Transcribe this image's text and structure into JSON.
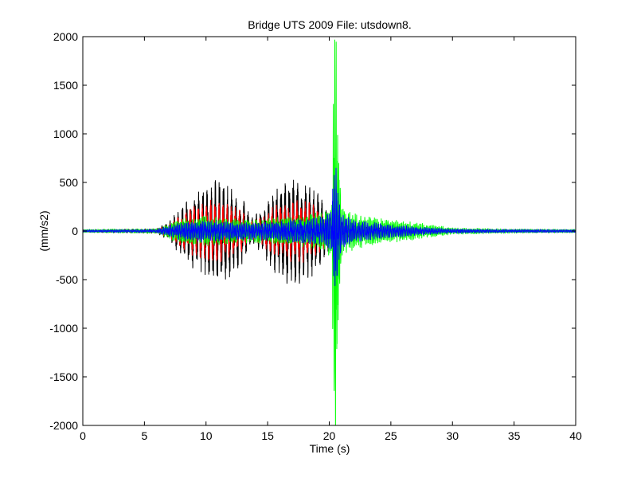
{
  "chart_data": {
    "type": "line",
    "title": "Bridge UTS 2009 File: utsdown8.",
    "xlabel": "Time (s)",
    "ylabel": "(mm/s2)",
    "xlim": [
      0,
      40
    ],
    "ylim": [
      -2000,
      2000
    ],
    "xticks": [
      0,
      5,
      10,
      15,
      20,
      25,
      30,
      35,
      40
    ],
    "yticks": [
      -2000,
      -1500,
      -1000,
      -500,
      0,
      500,
      1000,
      1500,
      2000
    ],
    "grid": false,
    "legend": "none",
    "series": [
      {
        "color": "#000000",
        "envelope_t": [
          0,
          6.0,
          7.0,
          8.0,
          9.0,
          10.0,
          11.0,
          12.0,
          13.0,
          13.6,
          14.5,
          15.5,
          16.5,
          17.5,
          18.5,
          19.5,
          20.2,
          21.5,
          23.0,
          25.0,
          30.0,
          40.0
        ],
        "envelope_amplitude": [
          10,
          20,
          90,
          220,
          330,
          410,
          460,
          390,
          280,
          120,
          180,
          360,
          460,
          480,
          420,
          260,
          120,
          60,
          40,
          20,
          10,
          8
        ],
        "frequency_hz": 3.0
      },
      {
        "color": "#ff0000",
        "envelope_t": [
          0,
          6.0,
          7.0,
          8.0,
          9.0,
          10.0,
          11.0,
          12.0,
          13.0,
          13.6,
          14.5,
          15.5,
          16.5,
          17.5,
          18.5,
          19.5,
          20.2,
          21.5,
          23.0,
          25.0,
          30.0,
          40.0
        ],
        "envelope_amplitude": [
          8,
          15,
          60,
          150,
          220,
          260,
          280,
          240,
          170,
          80,
          120,
          220,
          270,
          280,
          250,
          160,
          80,
          40,
          25,
          15,
          8,
          6
        ],
        "frequency_hz": 3.0
      },
      {
        "color": "#00ff00",
        "envelope_t": [
          0,
          6.0,
          7.0,
          8.0,
          10.0,
          12.0,
          14.0,
          16.0,
          18.0,
          19.5,
          20.2,
          20.4,
          20.5,
          20.7,
          21.0,
          21.5,
          22.5,
          24.0,
          26.0,
          28.0,
          30.0,
          34.0,
          40.0
        ],
        "envelope_amplitude": [
          15,
          20,
          70,
          110,
          130,
          110,
          100,
          120,
          140,
          170,
          230,
          1900,
          1950,
          900,
          250,
          180,
          150,
          110,
          90,
          60,
          30,
          20,
          15
        ],
        "frequency_hz": 9.0
      },
      {
        "color": "#0000ff",
        "envelope_t": [
          0,
          6.0,
          7.0,
          8.0,
          10.0,
          12.0,
          14.0,
          16.0,
          18.0,
          19.5,
          20.2,
          20.4,
          20.5,
          20.7,
          21.0,
          21.5,
          22.5,
          24.0,
          26.0,
          28.0,
          30.0,
          34.0,
          40.0
        ],
        "envelope_amplitude": [
          10,
          15,
          50,
          80,
          95,
          80,
          75,
          90,
          110,
          130,
          180,
          680,
          720,
          350,
          160,
          120,
          90,
          70,
          50,
          30,
          20,
          15,
          12
        ],
        "frequency_hz": 7.0
      }
    ]
  }
}
